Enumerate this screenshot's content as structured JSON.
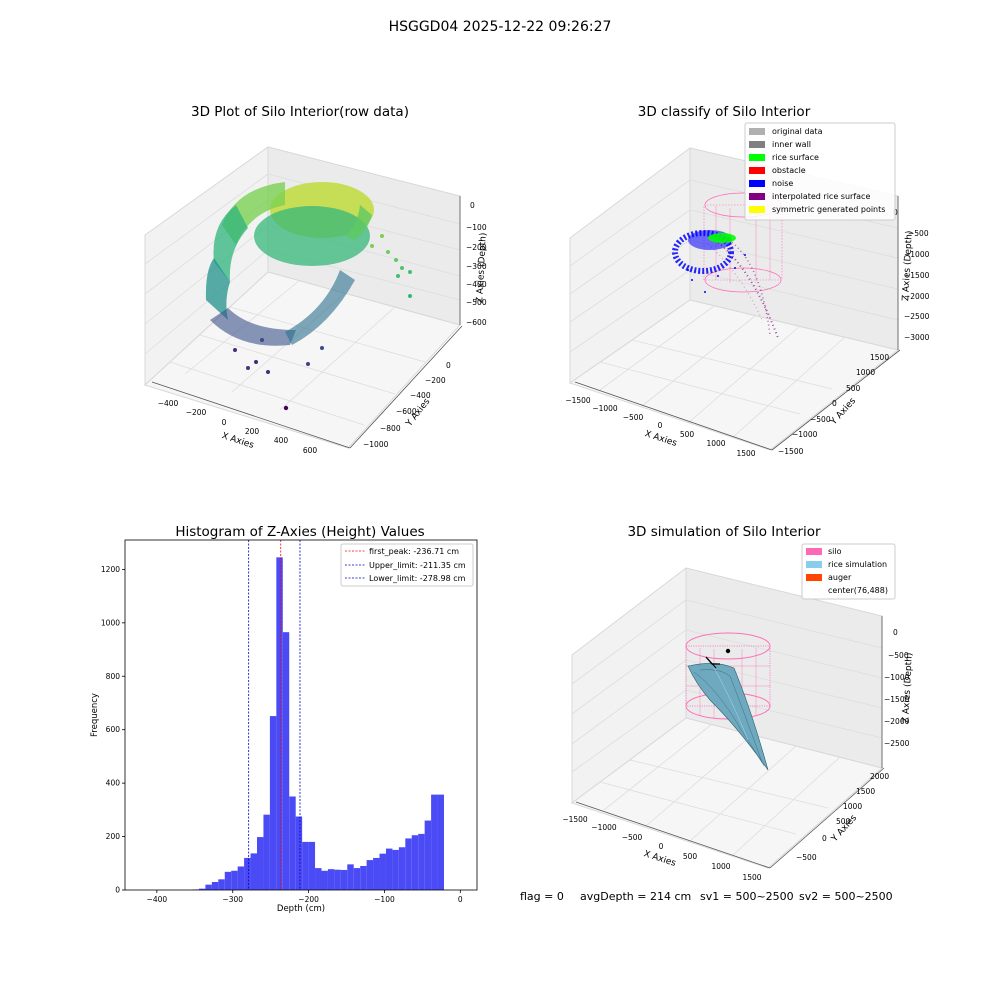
{
  "suptitle": "HSGGD04 2025-12-22 09:26:27",
  "colors": {
    "hist_bar": "#4b4bf5",
    "peak_line": "#ff0000",
    "limit_line": "#0000cc",
    "original_data": "#b0b0b0",
    "inner_wall": "#808080",
    "rice_surface": "#00ff00",
    "obstacle": "#ff0000",
    "noise": "#0000ff",
    "interpolated_rice_surface": "#800080",
    "symmetric_generated_points": "#ffff00",
    "silo": "#ff69b4",
    "rice_simulation": "#87ceeb",
    "auger": "#ff4500"
  },
  "chart_data": [
    {
      "type": "scatter",
      "projection": "3d",
      "title": "3D Plot of Silo Interior(row data)",
      "xlabel": "X Axies",
      "ylabel": "Y Axies",
      "zlabel": "Z Axies (Depth)",
      "x_ticks": [
        "−400",
        "−200",
        "0",
        "200",
        "400",
        "600"
      ],
      "y_ticks": [
        "0",
        "−200",
        "−400",
        "−600",
        "−800",
        "−1000"
      ],
      "z_ticks": [
        "0",
        "−100",
        "−200",
        "−300",
        "−400",
        "−500",
        "−600"
      ],
      "colormap": "viridis"
    },
    {
      "type": "scatter",
      "projection": "3d",
      "title": "3D classify of Silo Interior",
      "xlabel": "X Axies",
      "ylabel": "Y Axies",
      "zlabel": "Z Axies (Depth)",
      "x_ticks": [
        "−1500",
        "−1000",
        "−500",
        "0",
        "500",
        "1000",
        "1500"
      ],
      "y_ticks": [
        "1500",
        "1000",
        "500",
        "0",
        "−500",
        "−1000",
        "−1500"
      ],
      "z_ticks": [
        "0",
        "−500",
        "−1000",
        "−1500",
        "−2000",
        "−2500",
        "−3000"
      ],
      "legend": [
        "original data",
        "inner wall",
        "rice surface",
        "obstacle",
        "noise",
        "interpolated rice surface",
        "symmetric generated points"
      ],
      "legend_position": "upper right"
    },
    {
      "type": "bar",
      "title": "Histogram of Z-Axies (Height) Values",
      "xlabel": "Depth (cm)",
      "ylabel": "Frequency",
      "xlim": [
        -442,
        22
      ],
      "ylim": [
        0,
        1310
      ],
      "x_ticks": [
        {
          "value": -400,
          "label": "−400"
        },
        {
          "value": -300,
          "label": "−300"
        },
        {
          "value": -200,
          "label": "−200"
        },
        {
          "value": -100,
          "label": "−100"
        },
        {
          "value": 0,
          "label": "0"
        }
      ],
      "y_ticks": [
        {
          "value": 0,
          "label": "0"
        },
        {
          "value": 200,
          "label": "200"
        },
        {
          "value": 400,
          "label": "400"
        },
        {
          "value": 600,
          "label": "600"
        },
        {
          "value": 800,
          "label": "800"
        },
        {
          "value": 1000,
          "label": "1000"
        },
        {
          "value": 1200,
          "label": "1200"
        }
      ],
      "bin_width": 8.5,
      "bins": [
        {
          "x0": -353,
          "count": 2
        },
        {
          "x0": -344.5,
          "count": 5
        },
        {
          "x0": -336,
          "count": 20
        },
        {
          "x0": -327.5,
          "count": 30
        },
        {
          "x0": -319,
          "count": 40
        },
        {
          "x0": -310.5,
          "count": 68
        },
        {
          "x0": -302,
          "count": 72
        },
        {
          "x0": -293.5,
          "count": 88
        },
        {
          "x0": -285,
          "count": 120
        },
        {
          "x0": -276.5,
          "count": 137
        },
        {
          "x0": -268,
          "count": 198
        },
        {
          "x0": -259.5,
          "count": 282
        },
        {
          "x0": -251,
          "count": 651
        },
        {
          "x0": -242.5,
          "count": 1245
        },
        {
          "x0": -234,
          "count": 965
        },
        {
          "x0": -225.5,
          "count": 350
        },
        {
          "x0": -217,
          "count": 275
        },
        {
          "x0": -208.5,
          "count": 180
        },
        {
          "x0": -200,
          "count": 180
        },
        {
          "x0": -191.5,
          "count": 82
        },
        {
          "x0": -183,
          "count": 72
        },
        {
          "x0": -174.5,
          "count": 78
        },
        {
          "x0": -166,
          "count": 76
        },
        {
          "x0": -157.5,
          "count": 75
        },
        {
          "x0": -149,
          "count": 96
        },
        {
          "x0": -140.5,
          "count": 82
        },
        {
          "x0": -132,
          "count": 90
        },
        {
          "x0": -123.5,
          "count": 112
        },
        {
          "x0": -115,
          "count": 120
        },
        {
          "x0": -106.5,
          "count": 136
        },
        {
          "x0": -98,
          "count": 155
        },
        {
          "x0": -89.5,
          "count": 150
        },
        {
          "x0": -81,
          "count": 160
        },
        {
          "x0": -72.5,
          "count": 193
        },
        {
          "x0": -64,
          "count": 205
        },
        {
          "x0": -55.5,
          "count": 210
        },
        {
          "x0": -47,
          "count": 260
        },
        {
          "x0": -38.5,
          "count": 357
        },
        {
          "x0": -30,
          "count": 357
        }
      ],
      "vlines": [
        {
          "x": -236.71,
          "label": "first_peak: -236.71 cm",
          "color": "#ff0000"
        },
        {
          "x": -211.35,
          "label": "Upper_limit: -211.35 cm",
          "color": "#0000cc"
        },
        {
          "x": -278.98,
          "label": "Lower_limit: -278.98 cm",
          "color": "#0000cc"
        }
      ],
      "legend_position": "upper right"
    },
    {
      "type": "surface",
      "projection": "3d",
      "title": "3D simulation of Silo Interior",
      "xlabel": "X Axies",
      "ylabel": "Y Axies",
      "zlabel": "Z Axies (Depth)",
      "x_ticks": [
        "−1500",
        "−1000",
        "−500",
        "0",
        "500",
        "1000",
        "1500"
      ],
      "y_ticks": [
        "2000",
        "1500",
        "1000",
        "500",
        "0",
        "−500"
      ],
      "z_ticks": [
        "0",
        "−500",
        "−1000",
        "−1500",
        "−2000",
        "−2500"
      ],
      "legend": [
        "silo",
        "rice simulation",
        "auger",
        "center(76,488)"
      ],
      "legend_position": "upper right"
    }
  ],
  "status": {
    "flag": "flag = 0",
    "avg_depth": "avgDepth = 214 cm",
    "sv1": "sv1 = 500~2500",
    "sv2": "sv2 = 500~2500"
  }
}
